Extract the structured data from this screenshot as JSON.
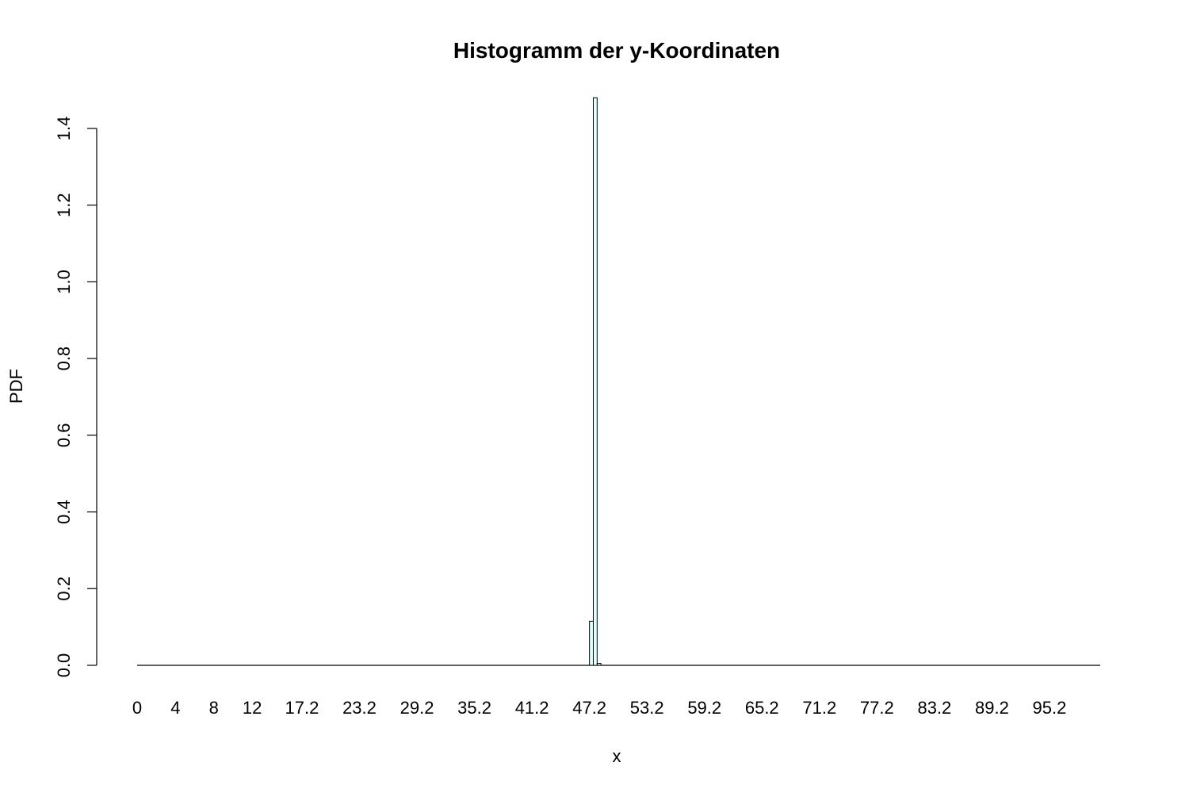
{
  "chart_data": {
    "type": "bar",
    "title": "Histogramm der y-Koordinaten",
    "xlabel": "x",
    "ylabel": "PDF",
    "x_ticks": [
      0,
      4,
      8,
      12,
      17.2,
      23.2,
      29.2,
      35.2,
      41.2,
      47.2,
      53.2,
      59.2,
      65.2,
      71.2,
      77.2,
      83.2,
      89.2,
      95.2
    ],
    "x_tick_labels": [
      "0",
      "4",
      "8",
      "12",
      "17.2",
      "23.2",
      "29.2",
      "35.2",
      "41.2",
      "47.2",
      "53.2",
      "59.2",
      "65.2",
      "71.2",
      "77.2",
      "83.2",
      "89.2",
      "95.2"
    ],
    "y_ticks": [
      0.0,
      0.2,
      0.4,
      0.6,
      0.8,
      1.0,
      1.2,
      1.4
    ],
    "y_tick_labels": [
      "0.0",
      "0.2",
      "0.4",
      "0.6",
      "0.8",
      "1.0",
      "1.2",
      "1.4"
    ],
    "ylim": [
      0,
      1.48
    ],
    "bins": [
      {
        "x0": 47.2,
        "x1": 47.6,
        "density": 0.115
      },
      {
        "x0": 47.6,
        "x1": 48.0,
        "density": 1.48
      },
      {
        "x0": 48.0,
        "x1": 48.4,
        "density": 0.005
      }
    ],
    "bar_color": "#e0ffff",
    "bar_stroke": "#000000"
  }
}
